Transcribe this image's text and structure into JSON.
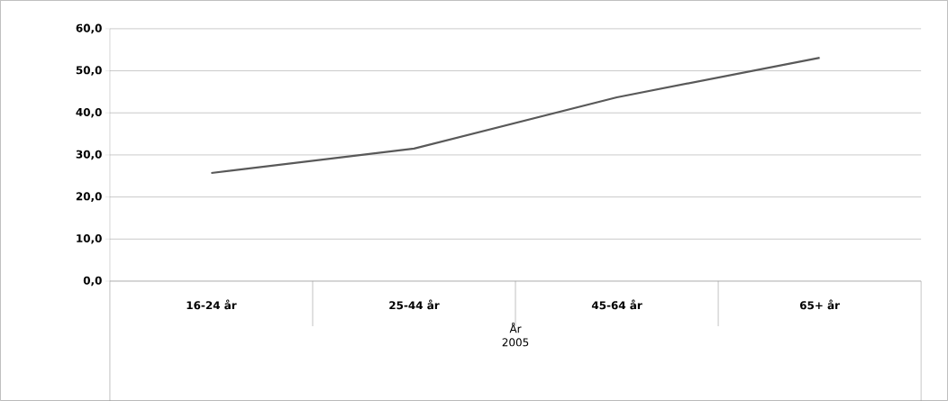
{
  "chart_data": {
    "type": "line",
    "xlabel": "År 2005",
    "categories": [
      "16-24 år",
      "25-44 år",
      "45-64 år",
      "65+ år"
    ],
    "series": [
      {
        "color": "#595959",
        "values": [
          25.7,
          31.5,
          43.7,
          53.1
        ]
      }
    ],
    "ylim": [
      0,
      60
    ],
    "yticks": [
      {
        "value": 0,
        "label": "0,0"
      },
      {
        "value": 10,
        "label": "10,0"
      },
      {
        "value": 20,
        "label": "20,0"
      },
      {
        "value": 30,
        "label": "30,0"
      },
      {
        "value": 40,
        "label": "40,0"
      },
      {
        "value": 50,
        "label": "50,0"
      },
      {
        "value": 60,
        "label": "60,0"
      }
    ],
    "grid": "y",
    "marker": "none",
    "line_style": "solid"
  }
}
